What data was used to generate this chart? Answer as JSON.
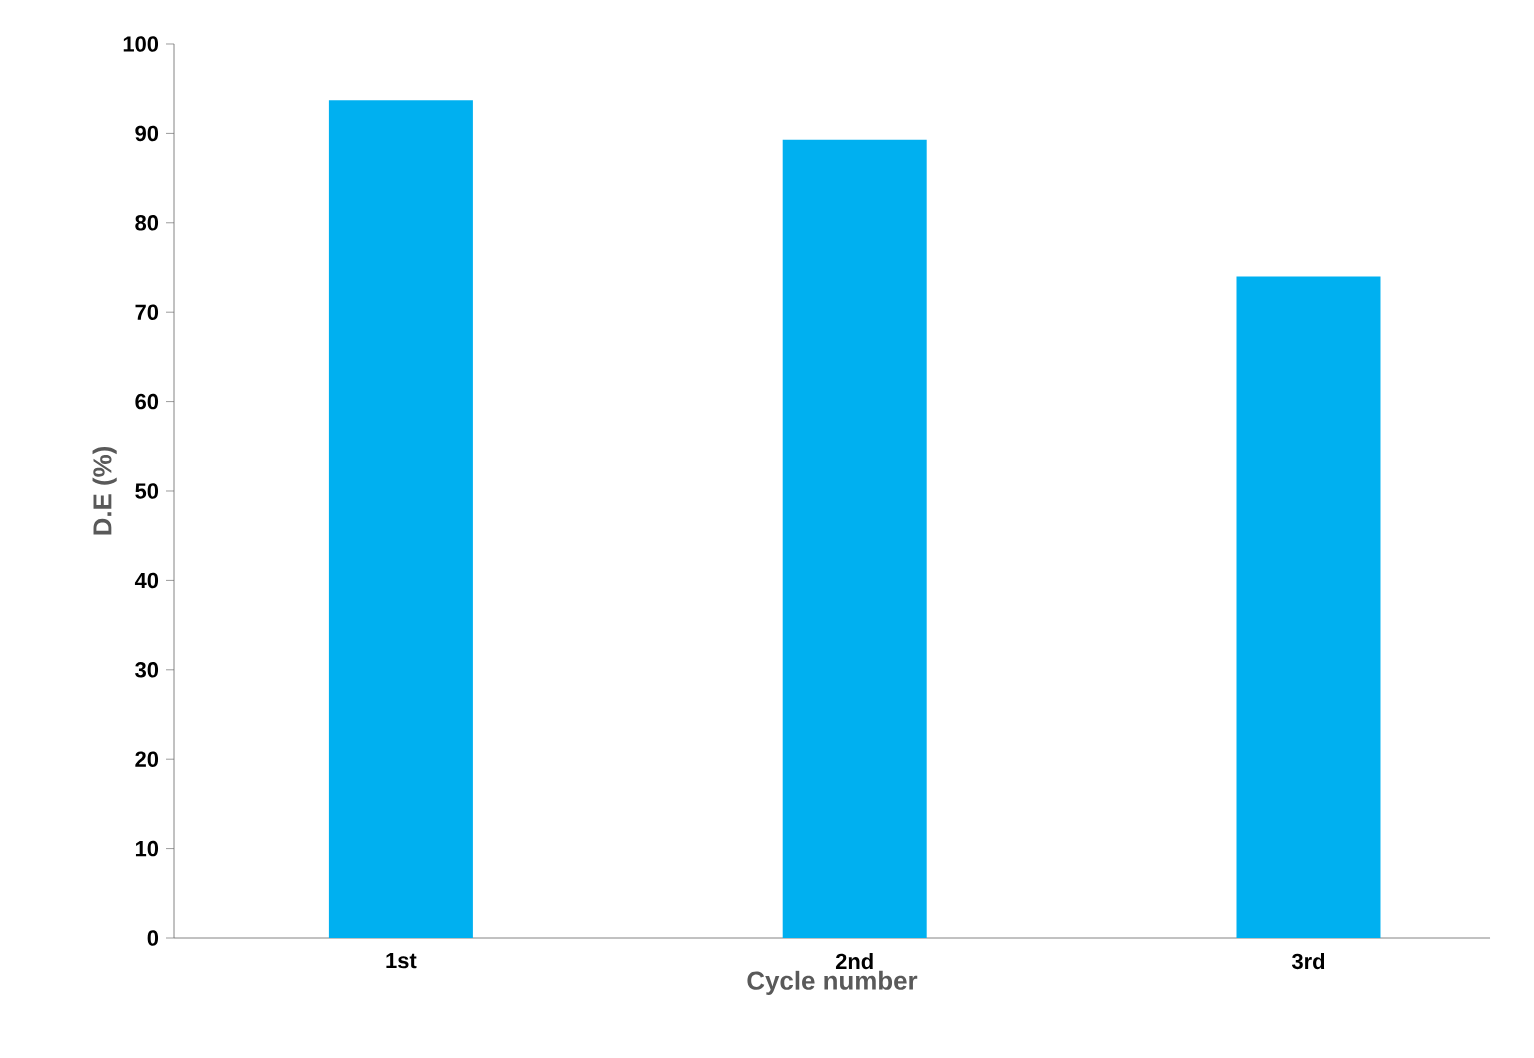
{
  "chart_data": {
    "type": "bar",
    "xlabel": "Cycle number",
    "ylabel": "D.E (%)",
    "categories": [
      "1st",
      "2nd",
      "3rd"
    ],
    "values": [
      93.7,
      89.3,
      74.0
    ],
    "color": "#00b0f0",
    "ylim": [
      0,
      100
    ],
    "yticks": [
      0,
      10,
      20,
      30,
      40,
      50,
      60,
      70,
      80,
      90,
      100
    ],
    "grid": false
  }
}
